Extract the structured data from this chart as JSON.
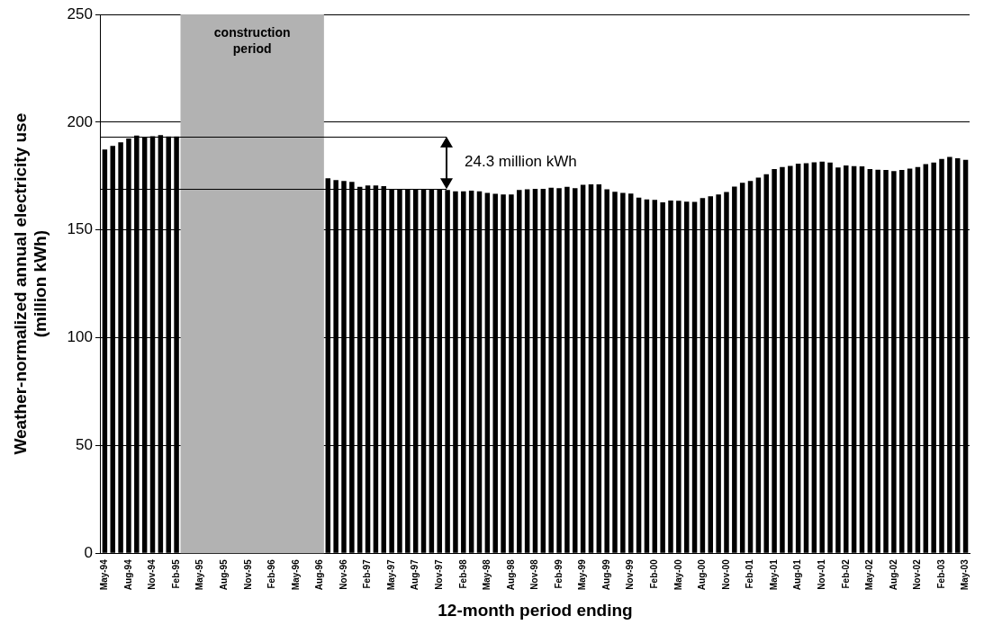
{
  "chart_data": {
    "type": "bar",
    "xlabel": "12-month period ending",
    "ylabel": "Weather-normalized annual electricity use\n(million kWh)",
    "categories": [
      "May-94",
      null,
      null,
      "Aug-94",
      null,
      null,
      "Nov-94",
      null,
      null,
      "Feb-95",
      null,
      null,
      "May-95",
      null,
      null,
      "Aug-95",
      null,
      null,
      "Nov-95",
      null,
      null,
      "Feb-96",
      null,
      null,
      "May-96",
      null,
      null,
      "Aug-96",
      null,
      null,
      "Nov-96",
      null,
      null,
      "Feb-97",
      null,
      null,
      "May-97",
      null,
      null,
      "Aug-97",
      null,
      null,
      "Nov-97",
      null,
      null,
      "Feb-98",
      null,
      null,
      "May-98",
      null,
      null,
      "Aug-98",
      null,
      null,
      "Nov-98",
      null,
      null,
      "Feb-99",
      null,
      null,
      "May-99",
      null,
      null,
      "Aug-99",
      null,
      null,
      "Nov-99",
      null,
      null,
      "Feb-00",
      null,
      null,
      "May-00",
      null,
      null,
      "Aug-00",
      null,
      null,
      "Nov-00",
      null,
      null,
      "Feb-01",
      null,
      null,
      "May-01",
      null,
      null,
      "Aug-01",
      null,
      null,
      "Nov-01",
      null,
      null,
      "Feb-02",
      null,
      null,
      "May-02",
      null,
      null,
      "Aug-02",
      null,
      null,
      "Nov-02",
      null,
      null,
      "Feb-03",
      null,
      null,
      "May-03"
    ],
    "values": [
      187.3,
      189.0,
      190.7,
      192.4,
      193.8,
      193.0,
      193.5,
      194.0,
      193.4,
      193.4,
      null,
      null,
      null,
      null,
      null,
      null,
      null,
      null,
      null,
      null,
      null,
      null,
      null,
      null,
      null,
      null,
      null,
      null,
      174.0,
      173.1,
      172.7,
      172.3,
      170.0,
      170.6,
      170.6,
      170.3,
      169.1,
      169.1,
      169.1,
      169.1,
      169.1,
      169.1,
      168.9,
      168.6,
      167.9,
      167.9,
      168.2,
      167.9,
      167.2,
      166.8,
      166.5,
      166.5,
      168.6,
      168.9,
      169.1,
      169.1,
      169.6,
      169.4,
      170.0,
      169.4,
      170.9,
      171.2,
      171.2,
      168.9,
      167.7,
      167.2,
      166.9,
      165.0,
      164.2,
      164.0,
      162.8,
      163.7,
      163.5,
      163.1,
      163.0,
      164.8,
      165.6,
      166.5,
      167.6,
      170.1,
      171.9,
      172.7,
      174.3,
      175.8,
      178.3,
      179.2,
      179.7,
      180.7,
      181.0,
      181.4,
      181.7,
      181.3,
      179.0,
      179.9,
      179.6,
      179.5,
      178.3,
      177.9,
      177.8,
      177.3,
      177.8,
      178.5,
      179.2,
      180.5,
      181.3,
      182.9,
      183.9,
      183.3,
      182.5
    ],
    "color": "#000000",
    "ylim": [
      0,
      250
    ],
    "yticks": [
      0,
      50,
      100,
      150,
      200,
      250
    ],
    "grid": "y",
    "legend": false,
    "bands": [
      {
        "axis": "x",
        "from": "Feb-95",
        "to": "Aug-96",
        "label": "construction period",
        "color": "#b2b2b2"
      }
    ],
    "ref_lines": [
      {
        "axis": "y",
        "value": 193.4,
        "color": "#000000"
      },
      {
        "axis": "y",
        "value": 169.1,
        "color": "#000000"
      }
    ],
    "annotations": [
      "24.3 million kWh"
    ]
  }
}
